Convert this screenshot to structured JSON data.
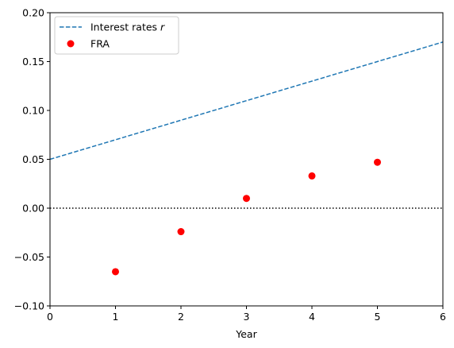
{
  "chart_data": {
    "type": "line",
    "xlabel": "Year",
    "ylabel": "",
    "xlim": [
      0,
      6
    ],
    "ylim": [
      -0.1,
      0.2
    ],
    "x_ticks": [
      "0",
      "1",
      "2",
      "3",
      "4",
      "5",
      "6"
    ],
    "y_ticks": [
      "−0.10",
      "−0.05",
      "0.00",
      "0.05",
      "0.10",
      "0.15",
      "0.20"
    ],
    "grid": false,
    "legend": "top-left",
    "series": [
      {
        "name": "Interest rates r",
        "label_plain": "Interest rates ",
        "label_italic": "r",
        "type": "line",
        "style": "dashed",
        "color": "#1f77b4",
        "x": [
          0,
          6
        ],
        "y": [
          0.05,
          0.17
        ]
      },
      {
        "name": "FRA",
        "type": "scatter",
        "color": "#ff0000",
        "x": [
          1,
          2,
          3,
          4,
          5
        ],
        "y": [
          -0.065,
          -0.024,
          0.01,
          0.033,
          0.047
        ]
      }
    ],
    "reference_lines": [
      {
        "type": "hline",
        "y": 0.0,
        "style": "dotted",
        "color": "#000000"
      }
    ]
  }
}
